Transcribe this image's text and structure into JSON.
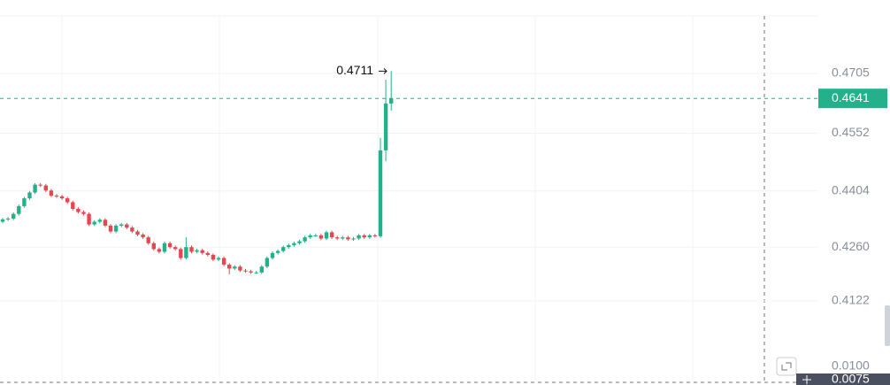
{
  "chart_data": {
    "type": "candlestick",
    "up_color": "#22b18a",
    "down_color": "#e5474f",
    "ylim": [
      0.3986,
      0.48524
    ],
    "yticks": [
      0.4122,
      {
        "value": 0.426,
        "label": "0.4260"
      },
      0.4404,
      0.4552,
      0.4705
    ],
    "grid": true,
    "last_price": 0.4641,
    "high_marker": 0.4711,
    "volume_ticks": [
      {
        "value": 0.01,
        "label": "0.0100"
      }
    ],
    "crosshair_value": 0.0075,
    "open": [
      0.4325,
      0.4331,
      0.4333,
      0.4345,
      0.4365,
      0.4385,
      0.44,
      0.442,
      0.4418,
      0.4405,
      0.4392,
      0.439,
      0.4385,
      0.4375,
      0.4358,
      0.435,
      0.4345,
      0.4318,
      0.4325,
      0.433,
      0.4315,
      0.43,
      0.4315,
      0.4318,
      0.431,
      0.43,
      0.4292,
      0.4285,
      0.427,
      0.4255,
      0.4248,
      0.427,
      0.426,
      0.4255,
      0.4232,
      0.426,
      0.4248,
      0.4252,
      0.4245,
      0.424,
      0.4228,
      0.4232,
      0.4215,
      0.4205,
      0.421,
      0.42,
      0.4198,
      0.4195,
      0.4195,
      0.421,
      0.4232,
      0.4245,
      0.425,
      0.426,
      0.4265,
      0.427,
      0.4275,
      0.4285,
      0.429,
      0.429,
      0.4282,
      0.4298,
      0.4285,
      0.4282,
      0.4285,
      0.428,
      0.4282,
      0.429,
      0.4285,
      0.429,
      0.4288,
      0.4508,
      0.4628
    ],
    "high": [
      0.4335,
      0.4337,
      0.4349,
      0.4369,
      0.4389,
      0.4404,
      0.4424,
      0.4424,
      0.4422,
      0.4409,
      0.4396,
      0.4394,
      0.4389,
      0.4379,
      0.4362,
      0.4354,
      0.4349,
      0.4329,
      0.4334,
      0.4334,
      0.4319,
      0.4319,
      0.4322,
      0.4322,
      0.4314,
      0.4304,
      0.4296,
      0.4289,
      0.4274,
      0.4259,
      0.4274,
      0.4274,
      0.4264,
      0.4259,
      0.4285,
      0.4264,
      0.4256,
      0.4256,
      0.4249,
      0.4244,
      0.4236,
      0.4236,
      0.4219,
      0.4214,
      0.4214,
      0.4204,
      0.4202,
      0.4199,
      0.4214,
      0.4236,
      0.4249,
      0.4254,
      0.4264,
      0.4269,
      0.4274,
      0.4279,
      0.4289,
      0.4294,
      0.4294,
      0.4294,
      0.4302,
      0.4302,
      0.4289,
      0.4289,
      0.4289,
      0.4286,
      0.4294,
      0.4294,
      0.4294,
      0.4294,
      0.454,
      0.4689,
      0.4711
    ],
    "low": [
      0.4321,
      0.4327,
      0.4329,
      0.4341,
      0.4361,
      0.4381,
      0.4396,
      0.4414,
      0.4401,
      0.4388,
      0.4386,
      0.4381,
      0.4371,
      0.4354,
      0.4346,
      0.4341,
      0.4314,
      0.4314,
      0.4321,
      0.4311,
      0.4296,
      0.4296,
      0.4311,
      0.4306,
      0.4296,
      0.4288,
      0.4281,
      0.4266,
      0.4251,
      0.4244,
      0.4244,
      0.4256,
      0.4251,
      0.4228,
      0.4228,
      0.4244,
      0.4244,
      0.4241,
      0.4236,
      0.4224,
      0.4224,
      0.4211,
      0.419,
      0.4201,
      0.4196,
      0.4194,
      0.4191,
      0.4191,
      0.4191,
      0.4206,
      0.4228,
      0.4241,
      0.4246,
      0.4256,
      0.4261,
      0.4266,
      0.4271,
      0.4281,
      0.4286,
      0.4278,
      0.4278,
      0.4281,
      0.4278,
      0.4278,
      0.4276,
      0.4276,
      0.4278,
      0.4281,
      0.4281,
      0.4284,
      0.4284,
      0.448,
      0.461
    ],
    "close": [
      0.4331,
      0.4333,
      0.4345,
      0.4365,
      0.4385,
      0.44,
      0.442,
      0.4418,
      0.4405,
      0.4392,
      0.439,
      0.4385,
      0.4375,
      0.4358,
      0.435,
      0.4345,
      0.4318,
      0.4325,
      0.433,
      0.4315,
      0.43,
      0.4315,
      0.4318,
      0.431,
      0.43,
      0.4292,
      0.4285,
      0.427,
      0.4255,
      0.4248,
      0.427,
      0.426,
      0.4255,
      0.4232,
      0.426,
      0.4248,
      0.4252,
      0.4245,
      0.424,
      0.4228,
      0.4232,
      0.4215,
      0.4205,
      0.421,
      0.42,
      0.4198,
      0.4195,
      0.4195,
      0.421,
      0.4232,
      0.4245,
      0.425,
      0.426,
      0.4265,
      0.427,
      0.4275,
      0.4285,
      0.429,
      0.429,
      0.4282,
      0.4298,
      0.4285,
      0.4282,
      0.4285,
      0.428,
      0.4282,
      0.429,
      0.4285,
      0.429,
      0.4288,
      0.4508,
      0.4628,
      0.4641
    ]
  }
}
